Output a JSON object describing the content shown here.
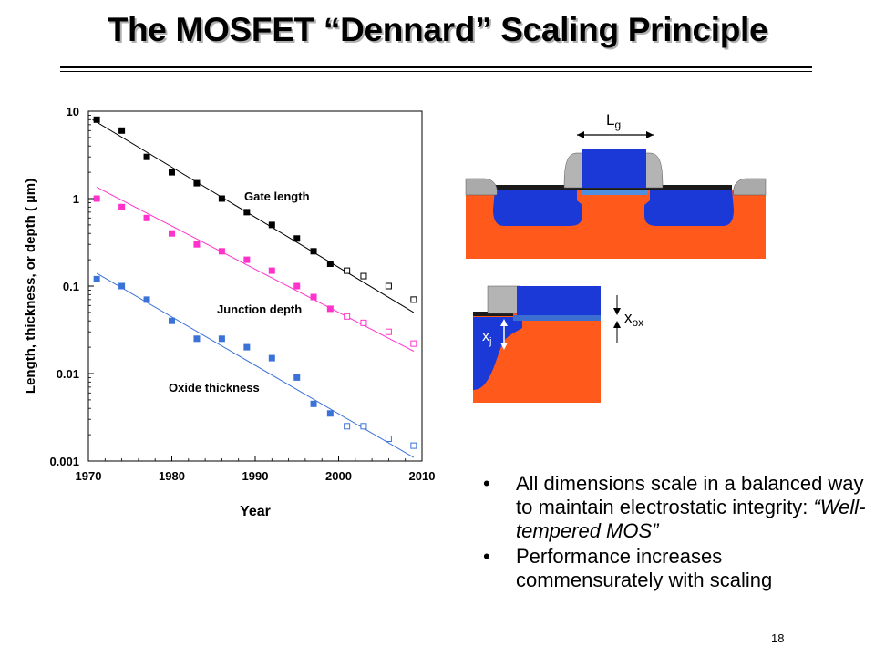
{
  "slide": {
    "title": "The MOSFET “Dennard” Scaling Principle",
    "page_number": "18"
  },
  "bullets": [
    {
      "text": "All dimensions scale in a balanced way to maintain electrostatic integrity: ",
      "italic": "“Well-tempered MOS”"
    },
    {
      "text": "Performance increases commensurately with scaling",
      "italic": ""
    }
  ],
  "diagram_labels": {
    "gate_length": "L",
    "gate_length_sub": "g",
    "oxide": "x",
    "oxide_sub": "ox",
    "junction": "x",
    "junction_sub": "j"
  },
  "colors": {
    "gate": "#1b39d6",
    "substrate": "#ff5a1c",
    "spacer": "#b4b4b4",
    "gate_series": "#000000",
    "junction_series": "#ff33cc",
    "oxide_series": "#3a72d8"
  },
  "chart_data": {
    "type": "scatter",
    "xlabel": "Year",
    "ylabel": "Length, thickness, or depth (  µm)",
    "xlim": [
      1970,
      2010
    ],
    "ylim": [
      0.001,
      10
    ],
    "y_scale": "log",
    "x_ticks": [
      "1970",
      "1980",
      "1990",
      "2000",
      "2010"
    ],
    "y_ticks": [
      "0.001",
      "0.01",
      "0.1",
      "1",
      "10"
    ],
    "grid": false,
    "series": [
      {
        "name": "Gate length",
        "color": "#000000",
        "fit": {
          "x": [
            1970.5,
            2009
          ],
          "y": [
            8.0,
            0.05
          ]
        },
        "filled": {
          "x": [
            1971,
            1974,
            1977,
            1980,
            1983,
            1986,
            1989,
            1992,
            1995,
            1997,
            1999
          ],
          "y": [
            8,
            6,
            3,
            2,
            1.5,
            1.0,
            0.7,
            0.5,
            0.35,
            0.25,
            0.18
          ]
        },
        "open": {
          "x": [
            2001,
            2003,
            2006,
            2009
          ],
          "y": [
            0.15,
            0.13,
            0.1,
            0.07
          ]
        }
      },
      {
        "name": "Junction depth",
        "color": "#ff33cc",
        "fit": {
          "x": [
            1971,
            2009
          ],
          "y": [
            1.35,
            0.018
          ]
        },
        "filled": {
          "x": [
            1971,
            1974,
            1977,
            1980,
            1983,
            1986,
            1989,
            1992,
            1995,
            1997,
            1999
          ],
          "y": [
            1.0,
            0.8,
            0.6,
            0.4,
            0.3,
            0.25,
            0.2,
            0.15,
            0.1,
            0.075,
            0.055
          ]
        },
        "open": {
          "x": [
            2001,
            2003,
            2006,
            2009
          ],
          "y": [
            0.045,
            0.038,
            0.03,
            0.022
          ]
        }
      },
      {
        "name": "Oxide thickness",
        "color": "#3a72d8",
        "fit": {
          "x": [
            1971,
            2009
          ],
          "y": [
            0.14,
            0.0011
          ]
        },
        "filled": {
          "x": [
            1971,
            1974,
            1977,
            1980,
            1983,
            1986,
            1989,
            1992,
            1995,
            1997,
            1999
          ],
          "y": [
            0.12,
            0.1,
            0.07,
            0.04,
            0.025,
            0.025,
            0.02,
            0.015,
            0.009,
            0.0045,
            0.0035
          ]
        },
        "open": {
          "x": [
            2001,
            2003,
            2006,
            2009
          ],
          "y": [
            0.0025,
            0.0025,
            0.0018,
            0.0015
          ]
        }
      }
    ],
    "annotations": [
      "Gate length",
      "Junction depth",
      "Oxide thickness"
    ]
  }
}
